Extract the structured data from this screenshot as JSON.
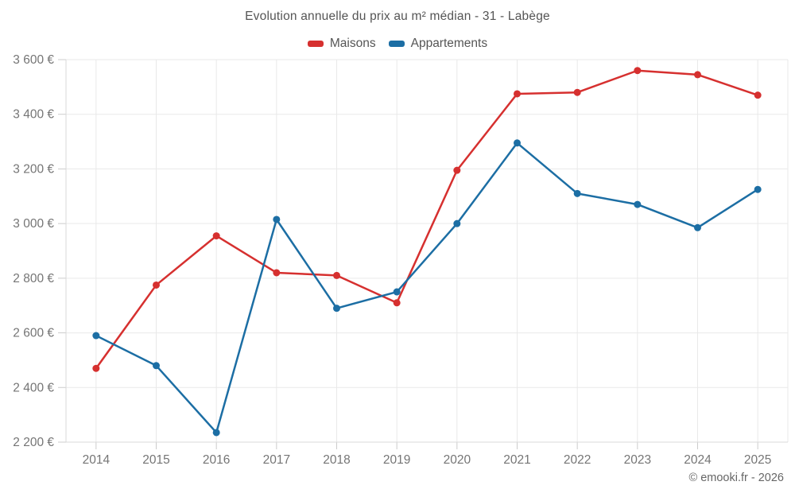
{
  "chart": {
    "title": "Evolution annuelle du prix au m² médian - 31 - Labège"
  },
  "legend": {
    "items": [
      {
        "label": "Maisons",
        "color": "#d6302f"
      },
      {
        "label": "Appartements",
        "color": "#1c6ea4"
      }
    ]
  },
  "footer": {
    "copyright": "© emooki.fr - 2026"
  },
  "chart_data": {
    "type": "line",
    "title": "Evolution annuelle du prix au m² médian - 31 - Labège",
    "x": [
      2014,
      2015,
      2016,
      2017,
      2018,
      2019,
      2020,
      2021,
      2022,
      2023,
      2024,
      2025
    ],
    "series": [
      {
        "name": "Maisons",
        "color": "#d6302f",
        "values": [
          2470,
          2775,
          2955,
          2820,
          2810,
          2710,
          3195,
          3475,
          3480,
          3560,
          3545,
          3470
        ]
      },
      {
        "name": "Appartements",
        "color": "#1c6ea4",
        "values": [
          2590,
          2480,
          2235,
          3015,
          2690,
          2750,
          3000,
          3295,
          3110,
          3070,
          2985,
          3125
        ]
      }
    ],
    "xlabel": "",
    "ylabel": "",
    "ylim": [
      2200,
      3600
    ],
    "y_ticks": [
      2200,
      2400,
      2600,
      2800,
      3000,
      3200,
      3400,
      3600
    ],
    "y_tick_labels": [
      "2 200 €",
      "2 400 €",
      "2 600 €",
      "2 800 €",
      "3 000 €",
      "3 200 €",
      "3 400 €",
      "3 600 €"
    ],
    "grid": true,
    "legend_position": "top"
  },
  "style": {
    "grid_color": "#e9e9e9",
    "axis_color": "#d9d9d9",
    "tick_color": "#cccccc",
    "label_color": "#757575"
  }
}
